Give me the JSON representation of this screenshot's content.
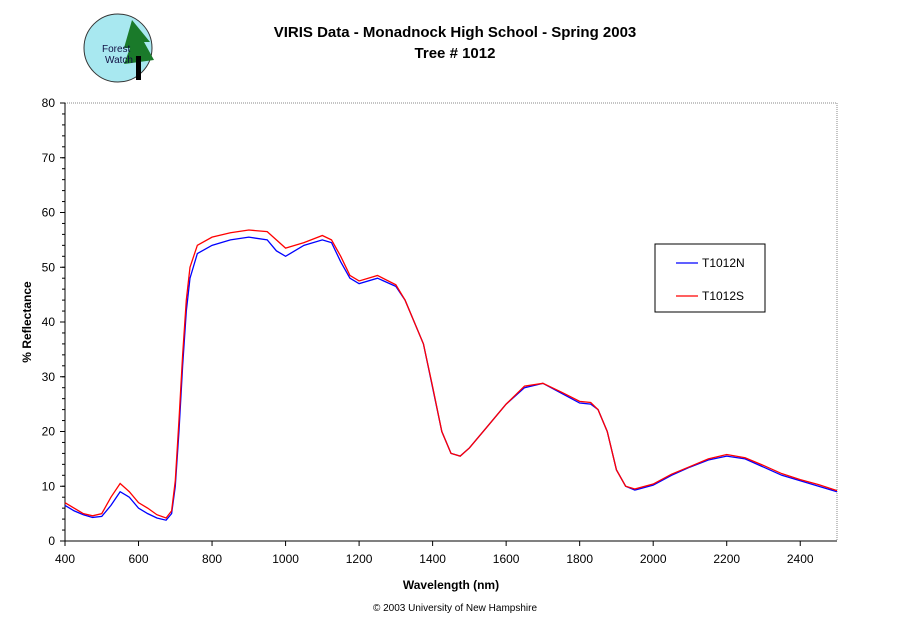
{
  "logo": {
    "text": "Forest Watch"
  },
  "footer": "© 2003 University of New Hampshire",
  "chart_data": {
    "type": "line",
    "title": "VIRIS Data - Monadnock High School - Spring 2003",
    "subtitle": "Tree # 1012",
    "xlabel": "Wavelength (nm)",
    "ylabel": "% Reflectance",
    "xlim": [
      400,
      2500
    ],
    "ylim": [
      0,
      80
    ],
    "xticks": [
      400,
      600,
      800,
      1000,
      1200,
      1400,
      1600,
      1800,
      2000,
      2200,
      2400
    ],
    "yticks": [
      0,
      10,
      20,
      30,
      40,
      50,
      60,
      70,
      80
    ],
    "grid": false,
    "legend_placement": "right",
    "series": [
      {
        "name": "T1012N",
        "color": "#0000ff",
        "x": [
          400,
          425,
          450,
          475,
          500,
          525,
          550,
          575,
          600,
          625,
          650,
          675,
          690,
          700,
          710,
          720,
          730,
          740,
          760,
          800,
          850,
          900,
          950,
          975,
          1000,
          1025,
          1050,
          1100,
          1125,
          1150,
          1175,
          1200,
          1250,
          1300,
          1325,
          1350,
          1375,
          1400,
          1425,
          1450,
          1475,
          1500,
          1550,
          1600,
          1650,
          1700,
          1750,
          1800,
          1830,
          1850,
          1875,
          1900,
          1925,
          1950,
          2000,
          2050,
          2100,
          2150,
          2200,
          2250,
          2300,
          2350,
          2400,
          2450,
          2500
        ],
        "y": [
          6.5,
          5.5,
          4.8,
          4.3,
          4.5,
          6.5,
          9,
          8,
          6,
          5,
          4.2,
          3.8,
          5,
          10,
          20,
          32,
          42,
          48,
          52.5,
          54,
          55,
          55.5,
          55,
          53,
          52,
          53,
          54,
          55,
          54.5,
          51,
          48,
          47,
          48,
          46.5,
          44,
          40,
          36,
          28,
          20,
          16,
          15.5,
          17,
          21,
          25,
          28,
          28.8,
          27,
          25.2,
          25,
          24,
          20,
          13,
          10,
          9.3,
          10.2,
          12,
          13.5,
          14.8,
          15.5,
          15,
          13.5,
          12,
          11,
          10,
          9
        ]
      },
      {
        "name": "T1012S",
        "color": "#ff0000",
        "x": [
          400,
          425,
          450,
          475,
          500,
          525,
          550,
          575,
          600,
          625,
          650,
          675,
          690,
          700,
          710,
          720,
          730,
          740,
          760,
          800,
          850,
          900,
          950,
          975,
          1000,
          1025,
          1050,
          1100,
          1125,
          1150,
          1175,
          1200,
          1250,
          1300,
          1325,
          1350,
          1375,
          1400,
          1425,
          1450,
          1475,
          1500,
          1550,
          1600,
          1650,
          1700,
          1750,
          1800,
          1830,
          1850,
          1875,
          1900,
          1925,
          1950,
          2000,
          2050,
          2100,
          2150,
          2200,
          2250,
          2300,
          2350,
          2400,
          2450,
          2500
        ],
        "y": [
          7,
          6,
          5,
          4.6,
          5,
          8,
          10.5,
          9,
          7,
          6,
          4.8,
          4.2,
          5.5,
          11,
          22,
          34,
          44,
          50,
          54,
          55.5,
          56.3,
          56.8,
          56.5,
          55,
          53.5,
          54,
          54.5,
          55.8,
          55,
          52,
          48.5,
          47.5,
          48.5,
          46.8,
          44,
          40,
          36,
          28.2,
          20,
          16,
          15.5,
          17,
          21,
          25,
          28.3,
          28.8,
          27.2,
          25.5,
          25.3,
          24,
          20,
          13,
          10,
          9.5,
          10.4,
          12.2,
          13.6,
          15,
          15.8,
          15.2,
          13.8,
          12.3,
          11.2,
          10.3,
          9.2
        ]
      }
    ]
  }
}
